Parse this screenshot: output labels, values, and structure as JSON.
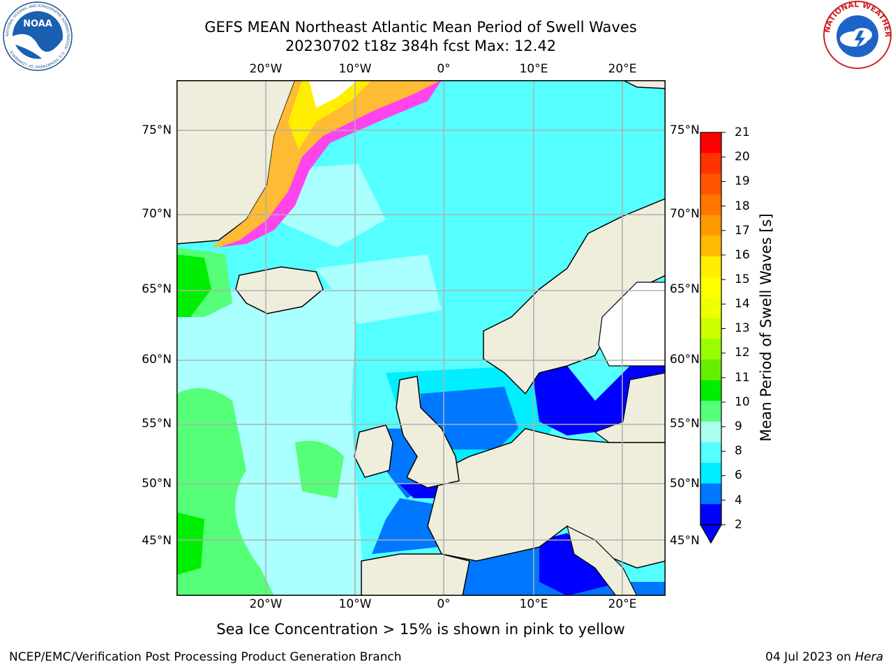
{
  "title_line1": "GEFS MEAN Northeast Atlantic Mean Period of Swell Waves",
  "title_line2": "20230702 t18z 384h fcst   Max: 12.42",
  "lon_ticks": [
    "20°W",
    "10°W",
    "0°",
    "10°E",
    "20°E"
  ],
  "lat_ticks": [
    "75°N",
    "70°N",
    "65°N",
    "60°N",
    "55°N",
    "50°N",
    "45°N"
  ],
  "colorbar": {
    "label": "Mean Period of Swell Waves [s]",
    "ticks": [
      "21",
      "20",
      "19",
      "18",
      "17",
      "16",
      "15",
      "14",
      "13",
      "12",
      "11",
      "10",
      "9",
      "8",
      "6",
      "4",
      "2"
    ],
    "colors": [
      "#ff0000",
      "#ff3300",
      "#ff5500",
      "#ff7700",
      "#ff9900",
      "#ffbb00",
      "#ffee00",
      "#ffff00",
      "#eeff00",
      "#ccff00",
      "#99ff00",
      "#66ee00",
      "#00ee00",
      "#55ff77",
      "#aaffee",
      "#55ffff",
      "#00eeff",
      "#0077ff",
      "#0000ff"
    ]
  },
  "colors": {
    "land": "#efeddc",
    "ice_white": "#ffffff",
    "swell_2_4": "#0077ff",
    "swell_lt2": "#0000ff",
    "swell_4_6": "#00eeff",
    "swell_6_8": "#55ffff",
    "swell_8_9": "#aaffff",
    "swell_9_10": "#55ff77",
    "swell_10_11": "#00ee00",
    "ice_pink": "#ff44ee",
    "ice_orange": "#ffbb33",
    "ice_yellow": "#ffee00"
  },
  "footnote": "Sea Ice Concentration > 15% is shown in pink to yellow",
  "credit": "NCEP/EMC/Verification Post Processing Product Generation Branch",
  "date_text": "04 Jul 2023 on ",
  "host": "Hera",
  "logo_noaa": "NOAA",
  "logo_noaa_ring": "NATIONAL OCEANIC AND ATMOSPHERIC ADMINISTRATION · U.S. DEPARTMENT OF COMMERCE",
  "logo_nws_ring": "NATIONAL WEATHER SERVICE"
}
